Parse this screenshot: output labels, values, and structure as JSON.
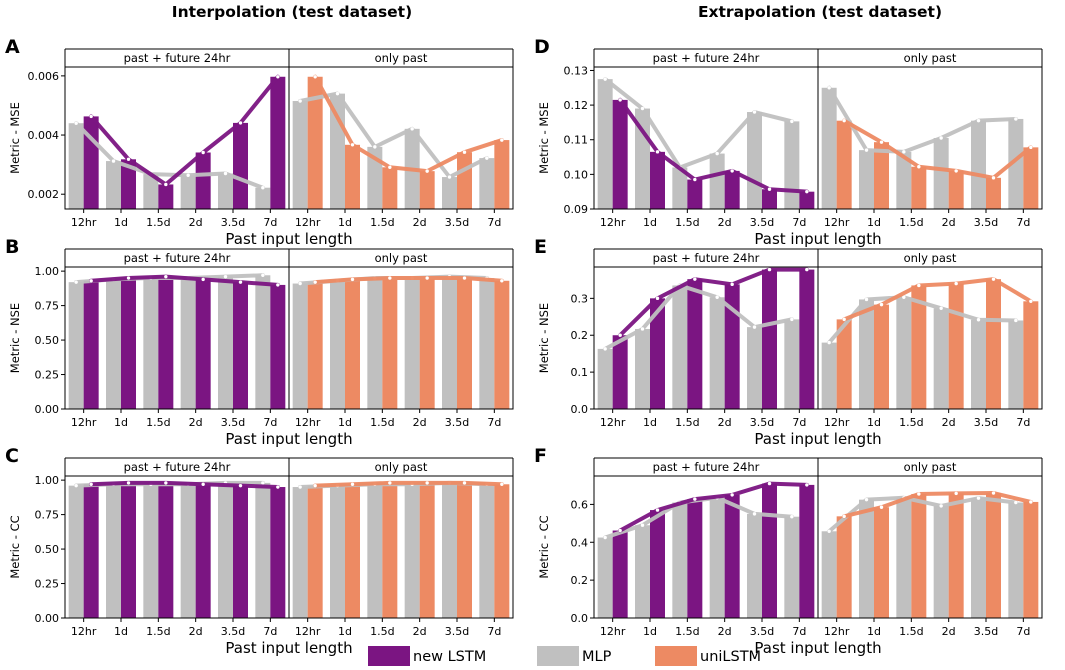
{
  "titles": {
    "left": "Interpolation (test dataset)",
    "right": "Extrapolation (test dataset)"
  },
  "facets": [
    "past + future 24hr",
    "only past"
  ],
  "categories": [
    "12hr",
    "1d",
    "1.5d",
    "2d",
    "3.5d",
    "7d"
  ],
  "xlabel": "Past input length",
  "colors": {
    "new LSTM": "#7b1582",
    "MLP": "#c0c0c0",
    "uniLSTM": "#ed8a63"
  },
  "legend": [
    {
      "label": "new LSTM",
      "color": "#7b1582"
    },
    {
      "label": "MLP",
      "color": "#c0c0c0"
    },
    {
      "label": "uniLSTM",
      "color": "#ed8a63"
    }
  ],
  "chart_data": [
    {
      "panel": "A",
      "type": "bar",
      "ylabel": "Metric - MSE",
      "ylim": [
        0.0015,
        0.0063
      ],
      "yticks": [
        0.002,
        0.004,
        0.006
      ],
      "ytick_labels": [
        "0.002",
        "0.004",
        "0.006"
      ],
      "facets": [
        {
          "name": "past + future 24hr",
          "series": [
            {
              "name": "MLP",
              "values": [
                0.0044,
                0.00312,
                0.00268,
                0.00264,
                0.0027,
                0.00222
              ]
            },
            {
              "name": "new LSTM",
              "values": [
                0.00463,
                0.00318,
                0.00233,
                0.00341,
                0.00441,
                0.00597
              ]
            }
          ]
        },
        {
          "name": "only past",
          "series": [
            {
              "name": "MLP",
              "values": [
                0.00515,
                0.0054,
                0.0036,
                0.00421,
                0.00258,
                0.00322
              ]
            },
            {
              "name": "uniLSTM",
              "values": [
                0.00597,
                0.00367,
                0.00291,
                0.00278,
                0.00342,
                0.00383
              ]
            }
          ]
        }
      ]
    },
    {
      "panel": "B",
      "type": "bar",
      "ylabel": "Metric - NSE",
      "ylim": [
        0,
        1.03
      ],
      "yticks": [
        0,
        0.25,
        0.5,
        0.75,
        1.0
      ],
      "ytick_labels": [
        "0.00",
        "0.25",
        "0.50",
        "0.75",
        "1.00"
      ],
      "facets": [
        {
          "name": "past + future 24hr",
          "series": [
            {
              "name": "MLP",
              "values": [
                0.92,
                0.94,
                0.95,
                0.95,
                0.96,
                0.97
              ]
            },
            {
              "name": "new LSTM",
              "values": [
                0.93,
                0.95,
                0.96,
                0.94,
                0.92,
                0.9
              ]
            }
          ]
        },
        {
          "name": "only past",
          "series": [
            {
              "name": "MLP",
              "values": [
                0.91,
                0.93,
                0.95,
                0.95,
                0.96,
                0.95
              ]
            },
            {
              "name": "uniLSTM",
              "values": [
                0.92,
                0.94,
                0.95,
                0.95,
                0.95,
                0.93
              ]
            }
          ]
        }
      ]
    },
    {
      "panel": "C",
      "type": "bar",
      "ylabel": "Metric - CC",
      "ylim": [
        0,
        1.03
      ],
      "yticks": [
        0,
        0.25,
        0.5,
        0.75,
        1.0
      ],
      "ytick_labels": [
        "0.00",
        "0.25",
        "0.50",
        "0.75",
        "1.00"
      ],
      "facets": [
        {
          "name": "past + future 24hr",
          "series": [
            {
              "name": "MLP",
              "values": [
                0.96,
                0.97,
                0.97,
                0.97,
                0.98,
                0.98
              ]
            },
            {
              "name": "new LSTM",
              "values": [
                0.97,
                0.98,
                0.98,
                0.97,
                0.96,
                0.95
              ]
            }
          ]
        },
        {
          "name": "only past",
          "series": [
            {
              "name": "MLP",
              "values": [
                0.95,
                0.96,
                0.97,
                0.97,
                0.98,
                0.97
              ]
            },
            {
              "name": "uniLSTM",
              "values": [
                0.96,
                0.97,
                0.98,
                0.98,
                0.98,
                0.97
              ]
            }
          ]
        }
      ]
    },
    {
      "panel": "D",
      "type": "bar",
      "ylabel": "Metric - MSE",
      "ylim": [
        0.09,
        0.131
      ],
      "yticks": [
        0.09,
        0.1,
        0.11,
        0.12,
        0.13
      ],
      "ytick_labels": [
        "0.09",
        "0.10",
        "0.11",
        "0.12",
        "0.13"
      ],
      "facets": [
        {
          "name": "past + future 24hr",
          "series": [
            {
              "name": "MLP",
              "values": [
                0.1275,
                0.119,
                0.102,
                0.106,
                0.118,
                0.1153
              ]
            },
            {
              "name": "new LSTM",
              "values": [
                0.1215,
                0.1065,
                0.0985,
                0.101,
                0.0957,
                0.095
              ]
            }
          ]
        },
        {
          "name": "only past",
          "series": [
            {
              "name": "MLP",
              "values": [
                0.125,
                0.107,
                0.1065,
                0.1105,
                0.1155,
                0.116
              ]
            },
            {
              "name": "uniLSTM",
              "values": [
                0.1155,
                0.1093,
                0.1022,
                0.101,
                0.099,
                0.1078
              ]
            }
          ]
        }
      ]
    },
    {
      "panel": "E",
      "type": "bar",
      "ylabel": "Metric - NSE",
      "ylim": [
        0,
        0.385
      ],
      "yticks": [
        0,
        0.1,
        0.2,
        0.3
      ],
      "ytick_labels": [
        "0.0",
        "0.1",
        "0.2",
        "0.3"
      ],
      "facets": [
        {
          "name": "past + future 24hr",
          "series": [
            {
              "name": "MLP",
              "values": [
                0.163,
                0.217,
                0.335,
                0.303,
                0.222,
                0.243
              ]
            },
            {
              "name": "new LSTM",
              "values": [
                0.2,
                0.3,
                0.352,
                0.338,
                0.378,
                0.378
              ]
            }
          ]
        },
        {
          "name": "only past",
          "series": [
            {
              "name": "MLP",
              "values": [
                0.18,
                0.297,
                0.303,
                0.273,
                0.242,
                0.24
              ]
            },
            {
              "name": "uniLSTM",
              "values": [
                0.243,
                0.283,
                0.335,
                0.34,
                0.352,
                0.292
              ]
            }
          ]
        }
      ]
    },
    {
      "panel": "F",
      "type": "bar",
      "ylabel": "Metric - CC",
      "ylim": [
        0,
        0.75
      ],
      "yticks": [
        0,
        0.2,
        0.4,
        0.6
      ],
      "ytick_labels": [
        "0.0",
        "0.2",
        "0.4",
        "0.6"
      ],
      "facets": [
        {
          "name": "past + future 24hr",
          "series": [
            {
              "name": "MLP",
              "values": [
                0.425,
                0.49,
                0.61,
                0.635,
                0.55,
                0.535
              ]
            },
            {
              "name": "new LSTM",
              "values": [
                0.462,
                0.57,
                0.628,
                0.65,
                0.71,
                0.703
              ]
            }
          ]
        },
        {
          "name": "only past",
          "series": [
            {
              "name": "MLP",
              "values": [
                0.458,
                0.625,
                0.635,
                0.592,
                0.633,
                0.61
              ]
            },
            {
              "name": "uniLSTM",
              "values": [
                0.537,
                0.585,
                0.655,
                0.658,
                0.66,
                0.613
              ]
            }
          ]
        }
      ]
    }
  ]
}
